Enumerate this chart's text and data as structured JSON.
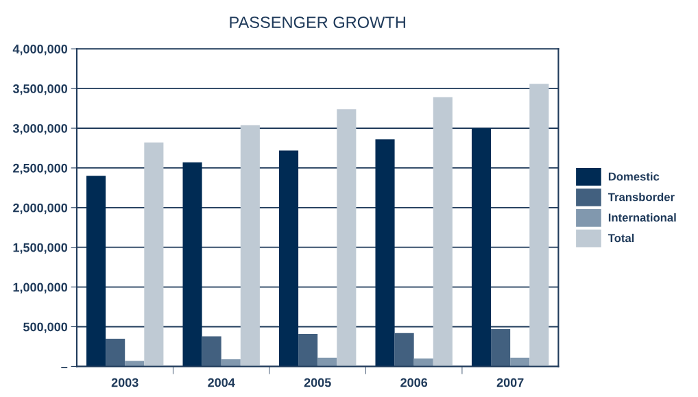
{
  "chart_data": {
    "type": "bar",
    "title": "PASSENGER GROWTH",
    "categories": [
      "2003",
      "2004",
      "2005",
      "2006",
      "2007"
    ],
    "series": [
      {
        "name": "Domestic",
        "color": "#002b54",
        "values": [
          2400000,
          2570000,
          2720000,
          2860000,
          3000000
        ]
      },
      {
        "name": "Transborder",
        "color": "#42607f",
        "values": [
          350000,
          380000,
          410000,
          420000,
          470000
        ]
      },
      {
        "name": "International",
        "color": "#8198ae",
        "values": [
          70000,
          90000,
          110000,
          100000,
          110000
        ]
      },
      {
        "name": "Total",
        "color": "#bfcad4",
        "values": [
          2820000,
          3040000,
          3240000,
          3390000,
          3560000
        ]
      }
    ],
    "ylim": [
      0,
      4000000
    ],
    "yticks": [
      {
        "value": 0,
        "label": "–"
      },
      {
        "value": 500000,
        "label": "500,000"
      },
      {
        "value": 1000000,
        "label": "1,000,000"
      },
      {
        "value": 1500000,
        "label": "1,500,000"
      },
      {
        "value": 2000000,
        "label": "2,000,000"
      },
      {
        "value": 2500000,
        "label": "2,500,000"
      },
      {
        "value": 3000000,
        "label": "3,000,000"
      },
      {
        "value": 3500000,
        "label": "3,500,000"
      },
      {
        "value": 4000000,
        "label": "4,000,000"
      }
    ],
    "grid": "y",
    "legend": "right"
  }
}
